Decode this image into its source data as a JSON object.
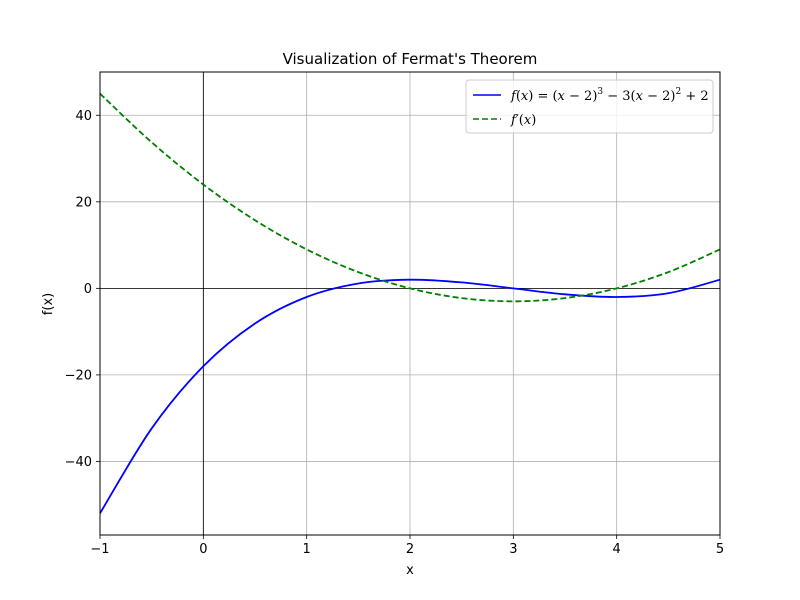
{
  "chart_data": {
    "type": "line",
    "title": "Visualization of Fermat's Theorem",
    "xlabel": "x",
    "ylabel": "f(x)",
    "xlim": [
      -1,
      5
    ],
    "ylim": [
      -57,
      50
    ],
    "xticks": [
      -1,
      0,
      1,
      2,
      3,
      4,
      5
    ],
    "yticks": [
      -40,
      -20,
      0,
      20,
      40
    ],
    "xtick_labels": [
      "−1",
      "0",
      "1",
      "2",
      "3",
      "4",
      "5"
    ],
    "ytick_labels": [
      "−40",
      "−20",
      "0",
      "20",
      "40"
    ],
    "grid": true,
    "axis_lines": [
      "x=0",
      "y=0"
    ],
    "legend_position": "top-right",
    "series": [
      {
        "name": "f(x) = (x − 2)3 − 3(x − 2)2 + 2",
        "color": "#0000ff",
        "style": "solid",
        "x": [
          -1,
          -0.5,
          0,
          0.5,
          1,
          1.5,
          2,
          2.5,
          3,
          3.5,
          4,
          4.5,
          5
        ],
        "y": [
          -52,
          -32.375,
          -18,
          -8.125,
          -2,
          1.125,
          2,
          1.375,
          0,
          -1.375,
          -2,
          -1.125,
          2
        ]
      },
      {
        "name": "f′(x)",
        "color": "#008000",
        "style": "dashed",
        "x": [
          -1,
          -0.5,
          0,
          0.5,
          1,
          1.5,
          2,
          2.5,
          3,
          3.5,
          4,
          4.5,
          5
        ],
        "y": [
          45,
          33.75,
          24,
          15.75,
          9,
          3.75,
          0,
          -2.25,
          -3,
          -2.25,
          0,
          3.75,
          9
        ]
      }
    ]
  }
}
